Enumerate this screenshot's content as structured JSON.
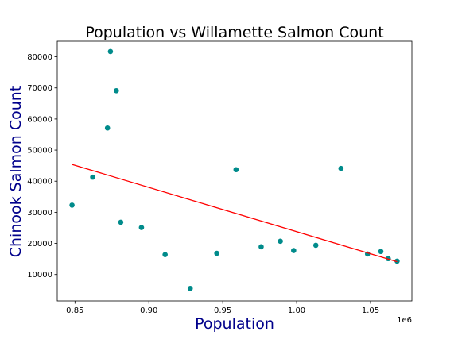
{
  "chart_data": {
    "type": "scatter",
    "title": "Population vs Willamette Salmon Count",
    "xlabel": "Population",
    "ylabel": "Chinook Salmon Count",
    "x_offset_label": "1e6",
    "xlim": [
      0.838,
      1.078
    ],
    "ylim": [
      1500,
      85000
    ],
    "xticks": [
      0.85,
      0.9,
      0.95,
      1.0,
      1.05
    ],
    "xtick_labels": [
      "0.85",
      "0.90",
      "0.95",
      "1.00",
      "1.05"
    ],
    "yticks": [
      10000,
      20000,
      30000,
      40000,
      50000,
      60000,
      70000,
      80000
    ],
    "ytick_labels": [
      "10000",
      "20000",
      "30000",
      "40000",
      "50000",
      "60000",
      "70000",
      "80000"
    ],
    "grid": false,
    "colors": {
      "points": "#008b8b",
      "trend": "#ff0000",
      "label": "#00008b"
    },
    "series": [
      {
        "kind": "scatter",
        "x": [
          0.848,
          0.862,
          0.872,
          0.874,
          0.878,
          0.881,
          0.895,
          0.911,
          0.928,
          0.946,
          0.959,
          0.976,
          0.989,
          0.998,
          1.013,
          1.03,
          1.048,
          1.057,
          1.062,
          1.068
        ],
        "y": [
          32300,
          41300,
          57100,
          81700,
          69100,
          26800,
          25100,
          16400,
          5500,
          16800,
          43700,
          18900,
          20700,
          17700,
          19400,
          44100,
          16600,
          17400,
          15100,
          14300
        ]
      },
      {
        "kind": "line",
        "x": [
          0.848,
          1.068
        ],
        "y": [
          45400,
          14100
        ]
      }
    ]
  }
}
